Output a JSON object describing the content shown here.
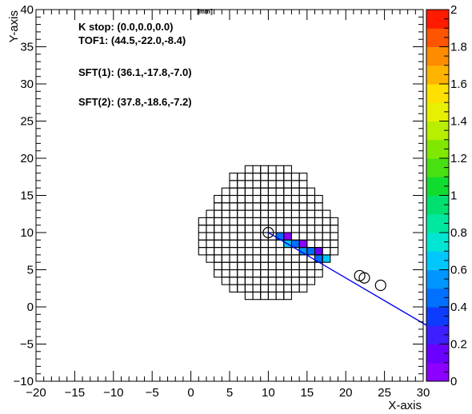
{
  "chart_data": {
    "type": "heatmap",
    "title": "[mm]",
    "xlabel": "X-axis",
    "ylabel": "Y-axis",
    "xlim": [
      -20,
      30
    ],
    "ylim": [
      -10,
      40
    ],
    "x_ticks": [
      -20,
      -15,
      -10,
      -5,
      0,
      5,
      10,
      15,
      20,
      25,
      30
    ],
    "y_ticks": [
      -10,
      -5,
      0,
      5,
      10,
      15,
      20,
      25,
      30,
      35,
      40
    ],
    "colorbar": {
      "zlim": [
        0,
        2
      ],
      "ticks": [
        0,
        0.2,
        0.4,
        0.6,
        0.8,
        1,
        1.2,
        1.4,
        1.6,
        1.8,
        2
      ]
    },
    "annotations": [
      {
        "key": "kstop",
        "text": "K stop: (0.0,0.0,0.0)"
      },
      {
        "key": "tof1",
        "text": "TOF1: (44.5,-22.0,-8.4)"
      },
      {
        "key": "sft1",
        "text": "SFT(1):   (36.1,-17.8,-7.0)"
      },
      {
        "key": "sft2",
        "text": "SFT(2):   (37.8,-18.6,-7.2)"
      }
    ],
    "detector_grid": {
      "cell_size": 1,
      "rows": [
        {
          "y": 18,
          "x_from": 7,
          "x_to": 13
        },
        {
          "y": 17,
          "x_from": 5,
          "x_to": 15
        },
        {
          "y": 16,
          "x_from": 5,
          "x_to": 15
        },
        {
          "y": 15,
          "x_from": 4,
          "x_to": 16
        },
        {
          "y": 14,
          "x_from": 3,
          "x_to": 17
        },
        {
          "y": 13,
          "x_from": 3,
          "x_to": 17
        },
        {
          "y": 12,
          "x_from": 2,
          "x_to": 18
        },
        {
          "y": 11,
          "x_from": 1,
          "x_to": 19
        },
        {
          "y": 10,
          "x_from": 1,
          "x_to": 19
        },
        {
          "y": 9,
          "x_from": 1,
          "x_to": 19
        },
        {
          "y": 8,
          "x_from": 1,
          "x_to": 19
        },
        {
          "y": 7,
          "x_from": 1,
          "x_to": 19
        },
        {
          "y": 6,
          "x_from": 2,
          "x_to": 18
        },
        {
          "y": 5,
          "x_from": 3,
          "x_to": 17
        },
        {
          "y": 4,
          "x_from": 3,
          "x_to": 17
        },
        {
          "y": 3,
          "x_from": 4,
          "x_to": 16
        },
        {
          "y": 2,
          "x_from": 5,
          "x_to": 15
        },
        {
          "y": 1,
          "x_from": 7,
          "x_to": 13
        }
      ]
    },
    "hit_cells": [
      {
        "x": 11,
        "y": 9,
        "value": 0.45
      },
      {
        "x": 12,
        "y": 9,
        "value": 0.05
      },
      {
        "x": 12,
        "y": 8,
        "value": 0.6
      },
      {
        "x": 13,
        "y": 8,
        "value": 0.4
      },
      {
        "x": 14,
        "y": 8,
        "value": 0.05
      },
      {
        "x": 14,
        "y": 7,
        "value": 0.5
      },
      {
        "x": 15,
        "y": 7,
        "value": 0.45
      },
      {
        "x": 16,
        "y": 7,
        "value": 0.15
      },
      {
        "x": 16,
        "y": 6,
        "value": 0.45
      },
      {
        "x": 17,
        "y": 6,
        "value": 0.6
      }
    ],
    "markers": [
      {
        "x": 10.0,
        "y": 10.0
      },
      {
        "x": 21.8,
        "y": 4.2
      },
      {
        "x": 22.4,
        "y": 3.9
      },
      {
        "x": 24.5,
        "y": 2.9
      }
    ],
    "track_line": {
      "x": [
        10,
        30.8
      ],
      "y": [
        10,
        -2.7
      ],
      "color": "#0000ee"
    }
  }
}
